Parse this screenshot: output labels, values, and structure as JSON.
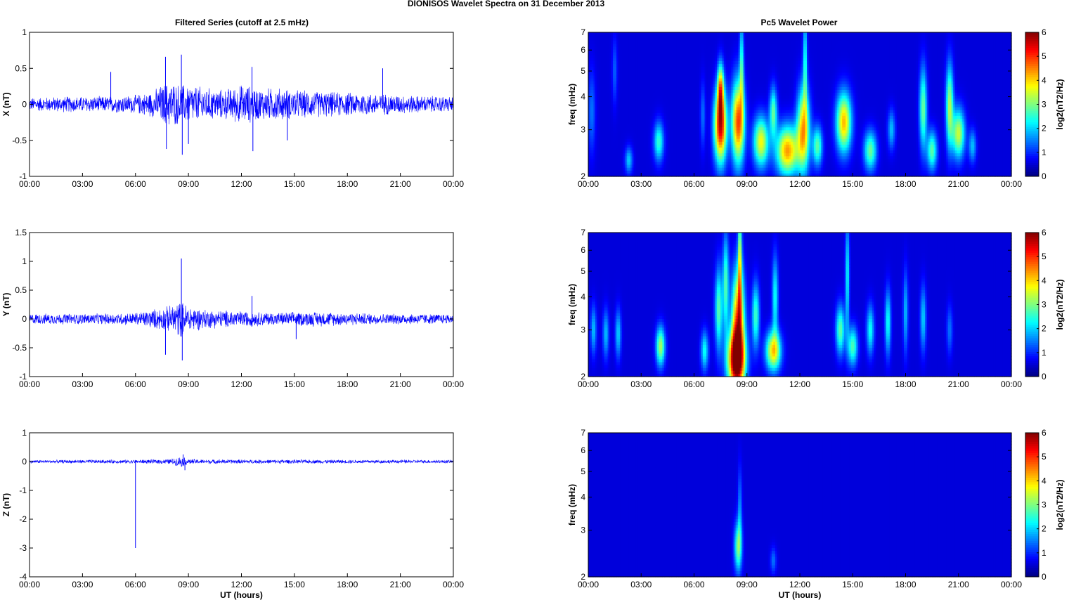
{
  "title": "DIONISOS Wavelet Spectra on 31 December  2013",
  "left_title": "Filtered Series (cutoff at 2.5 mHz)",
  "right_title": "Pc5 Wavelet Power",
  "x_label": "UT (hours)",
  "x_ticks": [
    "00:00",
    "03:00",
    "06:00",
    "09:00",
    "12:00",
    "15:00",
    "18:00",
    "21:00",
    "00:00"
  ],
  "series_color": "#0000ff",
  "chart_data": [
    {
      "type": "line",
      "panel": "X",
      "ylabel": "X (nT)",
      "x_range_hours": [
        0,
        24
      ],
      "ylim": [
        -1,
        1
      ],
      "y_ticks": [
        "1",
        "0.5",
        "0",
        "-0.5",
        "-1"
      ],
      "y_tick_values": [
        1,
        0.5,
        0,
        -0.5,
        -1
      ],
      "envelope_hours": [
        0,
        2,
        4,
        6,
        7,
        7.5,
        8,
        8.5,
        9,
        10,
        11,
        12,
        12.5,
        13,
        14,
        15,
        16,
        18,
        20,
        22,
        24
      ],
      "envelope_amp": [
        0.1,
        0.12,
        0.12,
        0.14,
        0.2,
        0.3,
        0.35,
        0.3,
        0.3,
        0.25,
        0.22,
        0.3,
        0.28,
        0.24,
        0.25,
        0.22,
        0.2,
        0.18,
        0.16,
        0.13,
        0.12
      ],
      "spikes": [
        {
          "t": 4.6,
          "v": 0.45
        },
        {
          "t": 7.7,
          "v": 0.66
        },
        {
          "t": 7.75,
          "v": -0.62
        },
        {
          "t": 8.6,
          "v": 0.69
        },
        {
          "t": 8.65,
          "v": -0.7
        },
        {
          "t": 9.0,
          "v": -0.55
        },
        {
          "t": 12.6,
          "v": 0.52
        },
        {
          "t": 12.65,
          "v": -0.65
        },
        {
          "t": 14.6,
          "v": -0.5
        },
        {
          "t": 20.0,
          "v": 0.5
        }
      ]
    },
    {
      "type": "line",
      "panel": "Y",
      "ylabel": "Y (nT)",
      "x_range_hours": [
        0,
        24
      ],
      "ylim": [
        -1,
        1.5
      ],
      "y_ticks": [
        "1.5",
        "1",
        "0.5",
        "0",
        "-0.5",
        "-1"
      ],
      "y_tick_values": [
        1.5,
        1,
        0.5,
        0,
        -0.5,
        -1
      ],
      "envelope_hours": [
        0,
        2,
        4,
        6,
        7,
        8,
        8.5,
        9,
        10,
        12,
        14,
        15,
        16,
        18,
        20,
        22,
        24
      ],
      "envelope_amp": [
        0.1,
        0.1,
        0.1,
        0.12,
        0.18,
        0.25,
        0.35,
        0.25,
        0.18,
        0.15,
        0.12,
        0.13,
        0.14,
        0.12,
        0.1,
        0.1,
        0.09
      ],
      "spikes": [
        {
          "t": 7.7,
          "v": -0.62
        },
        {
          "t": 8.6,
          "v": 1.05
        },
        {
          "t": 8.65,
          "v": -0.72
        },
        {
          "t": 12.6,
          "v": 0.4
        },
        {
          "t": 15.1,
          "v": -0.35
        }
      ]
    },
    {
      "type": "line",
      "panel": "Z",
      "ylabel": "Z (nT)",
      "x_range_hours": [
        0,
        24
      ],
      "ylim": [
        -4,
        1
      ],
      "y_ticks": [
        "1",
        "0",
        "-1",
        "-2",
        "-3",
        "-4"
      ],
      "y_tick_values": [
        1,
        0,
        -1,
        -2,
        -3,
        -4
      ],
      "envelope_hours": [
        0,
        6,
        7,
        8,
        8.6,
        9,
        10,
        16,
        24
      ],
      "envelope_amp": [
        0.06,
        0.07,
        0.08,
        0.1,
        0.2,
        0.1,
        0.08,
        0.07,
        0.06
      ],
      "spikes": [
        {
          "t": 6.0,
          "v": -3.0
        },
        {
          "t": 8.7,
          "v": 0.25
        },
        {
          "t": 8.8,
          "v": -0.3
        }
      ]
    },
    {
      "type": "heatmap",
      "panel": "X",
      "ylabel": "freq (mHz)",
      "x_range_hours": [
        0,
        24
      ],
      "ylim": [
        2,
        7
      ],
      "y_scale": "log",
      "y_ticks": [
        "7",
        "6",
        "5",
        "4",
        "3",
        "2"
      ],
      "y_tick_values": [
        7,
        6,
        5,
        4,
        3,
        2
      ],
      "colorbar_label": "log2(nT2/Hz)",
      "colorbar_ticks": [
        "6",
        "5",
        "4",
        "3",
        "2",
        "1",
        "0"
      ],
      "clim": [
        0,
        6
      ],
      "blobs": [
        [
          0.2,
          3.5,
          0.15,
          0.25,
          1.0
        ],
        [
          1.5,
          5.0,
          0.1,
          0.2,
          0.9
        ],
        [
          2.3,
          2.3,
          0.15,
          0.08,
          1.6
        ],
        [
          4.0,
          2.7,
          0.2,
          0.12,
          2.2
        ],
        [
          6.5,
          3.4,
          0.1,
          0.2,
          1.0
        ],
        [
          7.5,
          3.1,
          0.25,
          0.22,
          5.5
        ],
        [
          7.5,
          4.3,
          0.12,
          0.15,
          3.5
        ],
        [
          8.5,
          3.2,
          0.25,
          0.25,
          4.8
        ],
        [
          8.7,
          5.2,
          0.08,
          0.3,
          2.2
        ],
        [
          9.8,
          2.7,
          0.3,
          0.15,
          3.5
        ],
        [
          10.5,
          3.5,
          0.15,
          0.15,
          2.5
        ],
        [
          11.3,
          2.5,
          0.45,
          0.15,
          4.2
        ],
        [
          12.2,
          3.0,
          0.25,
          0.25,
          4.0
        ],
        [
          12.3,
          5.5,
          0.08,
          0.3,
          2.0
        ],
        [
          13.0,
          2.6,
          0.2,
          0.12,
          2.5
        ],
        [
          14.5,
          3.2,
          0.3,
          0.18,
          4.0
        ],
        [
          16.0,
          2.5,
          0.25,
          0.12,
          2.6
        ],
        [
          17.2,
          3.0,
          0.15,
          0.12,
          1.5
        ],
        [
          19.0,
          3.6,
          0.15,
          0.25,
          2.6
        ],
        [
          19.5,
          2.5,
          0.2,
          0.12,
          2.5
        ],
        [
          20.5,
          3.7,
          0.15,
          0.25,
          3.0
        ],
        [
          21.0,
          2.9,
          0.25,
          0.15,
          3.2
        ],
        [
          21.8,
          2.6,
          0.15,
          0.1,
          1.5
        ]
      ]
    },
    {
      "type": "heatmap",
      "panel": "Y",
      "ylabel": "freq (mHz)",
      "x_range_hours": [
        0,
        24
      ],
      "ylim": [
        2,
        7
      ],
      "y_scale": "log",
      "y_ticks": [
        "7",
        "6",
        "5",
        "4",
        "3",
        "2"
      ],
      "y_tick_values": [
        7,
        6,
        5,
        4,
        3,
        2
      ],
      "colorbar_label": "log2(nT2/Hz)",
      "colorbar_ticks": [
        "6",
        "5",
        "4",
        "3",
        "2",
        "1",
        "0"
      ],
      "clim": [
        0,
        6
      ],
      "blobs": [
        [
          0.3,
          3.0,
          0.12,
          0.15,
          1.5
        ],
        [
          1.0,
          2.9,
          0.12,
          0.15,
          1.5
        ],
        [
          1.7,
          2.9,
          0.12,
          0.15,
          1.6
        ],
        [
          4.1,
          2.6,
          0.18,
          0.12,
          3.0
        ],
        [
          6.6,
          2.5,
          0.15,
          0.12,
          2.0
        ],
        [
          7.4,
          3.6,
          0.15,
          0.25,
          2.5
        ],
        [
          7.8,
          4.5,
          0.12,
          0.3,
          2.4
        ],
        [
          8.4,
          2.3,
          0.35,
          0.18,
          6.0
        ],
        [
          8.5,
          3.3,
          0.25,
          0.3,
          4.5
        ],
        [
          8.6,
          5.5,
          0.08,
          0.35,
          3.0
        ],
        [
          9.5,
          3.4,
          0.15,
          0.2,
          2.3
        ],
        [
          10.5,
          2.5,
          0.3,
          0.12,
          3.8
        ],
        [
          10.6,
          4.0,
          0.12,
          0.25,
          2.0
        ],
        [
          14.3,
          3.0,
          0.18,
          0.15,
          2.5
        ],
        [
          14.7,
          4.8,
          0.08,
          0.35,
          2.0
        ],
        [
          15.0,
          2.6,
          0.2,
          0.12,
          2.4
        ],
        [
          16.0,
          3.0,
          0.15,
          0.15,
          2.0
        ],
        [
          17.0,
          3.2,
          0.12,
          0.2,
          2.0
        ],
        [
          18.0,
          3.5,
          0.1,
          0.25,
          1.5
        ],
        [
          19.0,
          3.3,
          0.12,
          0.2,
          1.6
        ],
        [
          20.5,
          3.0,
          0.12,
          0.15,
          1.0
        ]
      ]
    },
    {
      "type": "heatmap",
      "panel": "Z",
      "ylabel": "freq (mHz)",
      "x_range_hours": [
        0,
        24
      ],
      "ylim": [
        2,
        7
      ],
      "y_scale": "log",
      "y_ticks": [
        "7",
        "6",
        "5",
        "4",
        "3",
        "2"
      ],
      "y_tick_values": [
        7,
        6,
        5,
        4,
        3,
        2
      ],
      "colorbar_label": "log2(nT2/Hz)",
      "colorbar_ticks": [
        "6",
        "5",
        "4",
        "3",
        "2",
        "1",
        "0"
      ],
      "clim": [
        0,
        6
      ],
      "blobs": [
        [
          8.5,
          2.6,
          0.15,
          0.15,
          2.7
        ],
        [
          8.6,
          3.6,
          0.08,
          0.25,
          1.2
        ],
        [
          10.5,
          2.3,
          0.12,
          0.08,
          1.0
        ]
      ]
    }
  ]
}
